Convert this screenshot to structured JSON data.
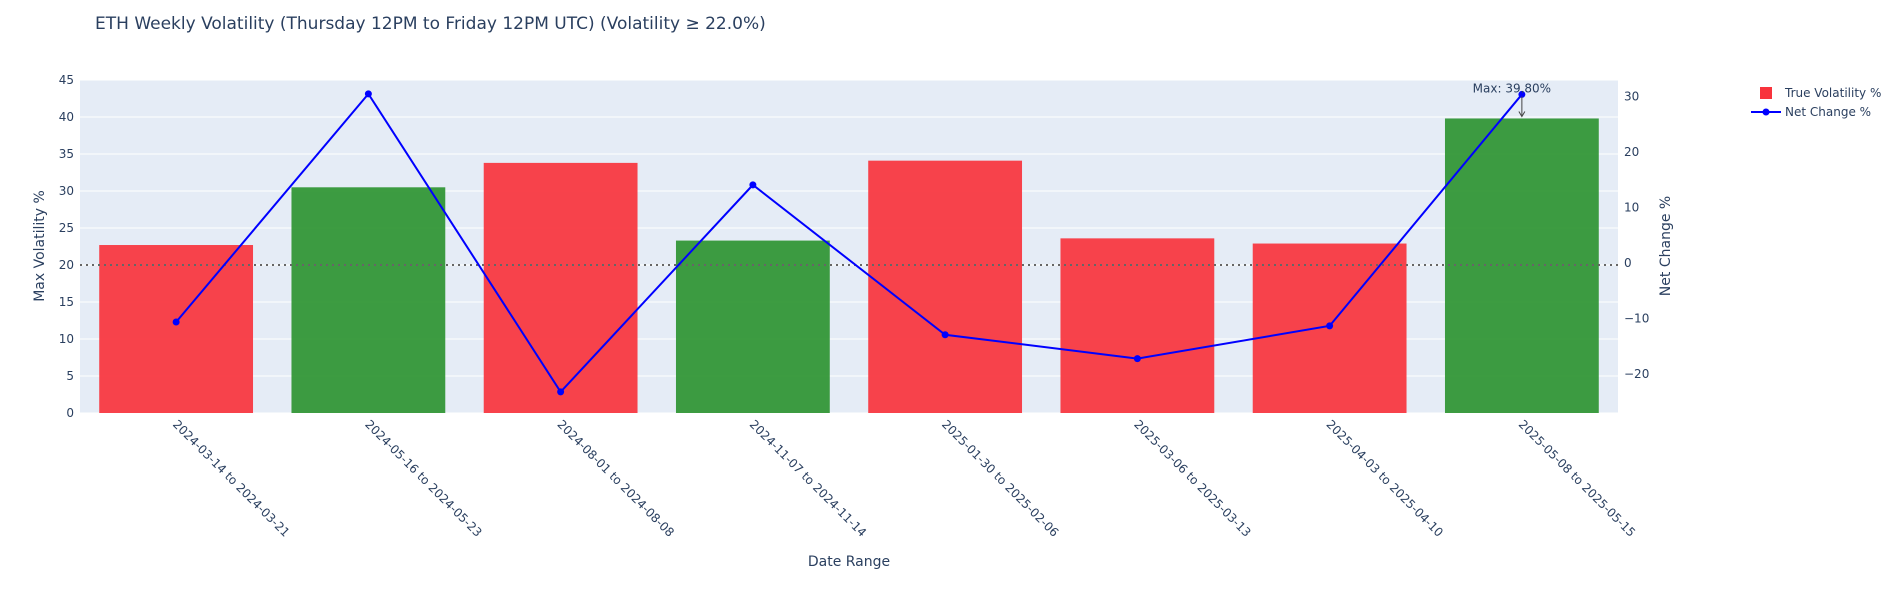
{
  "chart_data": {
    "type": "bar",
    "title": "ETH Weekly Volatility (Thursday 12PM to Friday 12PM UTC) (Volatility ≥ 22.0%)",
    "xlabel": "Date Range",
    "ylabel": "Max Volatility %",
    "y2label": "Net Change %",
    "ylim": [
      0,
      45
    ],
    "y2lim": [
      -27,
      33
    ],
    "yticks": [
      0,
      5,
      10,
      15,
      20,
      25,
      30,
      35,
      40,
      45
    ],
    "y2ticks": [
      -20,
      -10,
      0,
      10,
      20,
      30
    ],
    "categories": [
      "2024-03-14 to 2024-03-21",
      "2024-05-16 to 2024-05-23",
      "2024-08-01 to 2024-08-08",
      "2024-11-07 to 2024-11-14",
      "2025-01-30 to 2025-02-06",
      "2025-03-06 to 2025-03-13",
      "2025-04-03 to 2025-04-10",
      "2025-05-08 to 2025-05-15"
    ],
    "series": [
      {
        "name": "True Volatility %",
        "kind": "bar",
        "axis": "left",
        "values": [
          22.7,
          30.5,
          33.8,
          23.3,
          34.1,
          23.6,
          22.9,
          39.8
        ],
        "colors": [
          "#f8333c",
          "#2e9431",
          "#f8333c",
          "#2e9431",
          "#f8333c",
          "#f8333c",
          "#f8333c",
          "#2e9431"
        ]
      },
      {
        "name": "Net Change %",
        "kind": "line",
        "axis": "right",
        "color": "#0000ff",
        "values": [
          -10.6,
          30.5,
          -23.2,
          14.1,
          -12.9,
          -17.2,
          -11.3,
          30.4
        ]
      }
    ],
    "reference_line": {
      "value": 20,
      "axis": "left",
      "style": "dotted",
      "color": "#666666"
    },
    "annotation": {
      "text": "Max: 39.80%",
      "category_index": 7,
      "value": 39.8
    },
    "legend_position": "top-right",
    "grid": true,
    "plot_bg": "#e5ecf6"
  }
}
